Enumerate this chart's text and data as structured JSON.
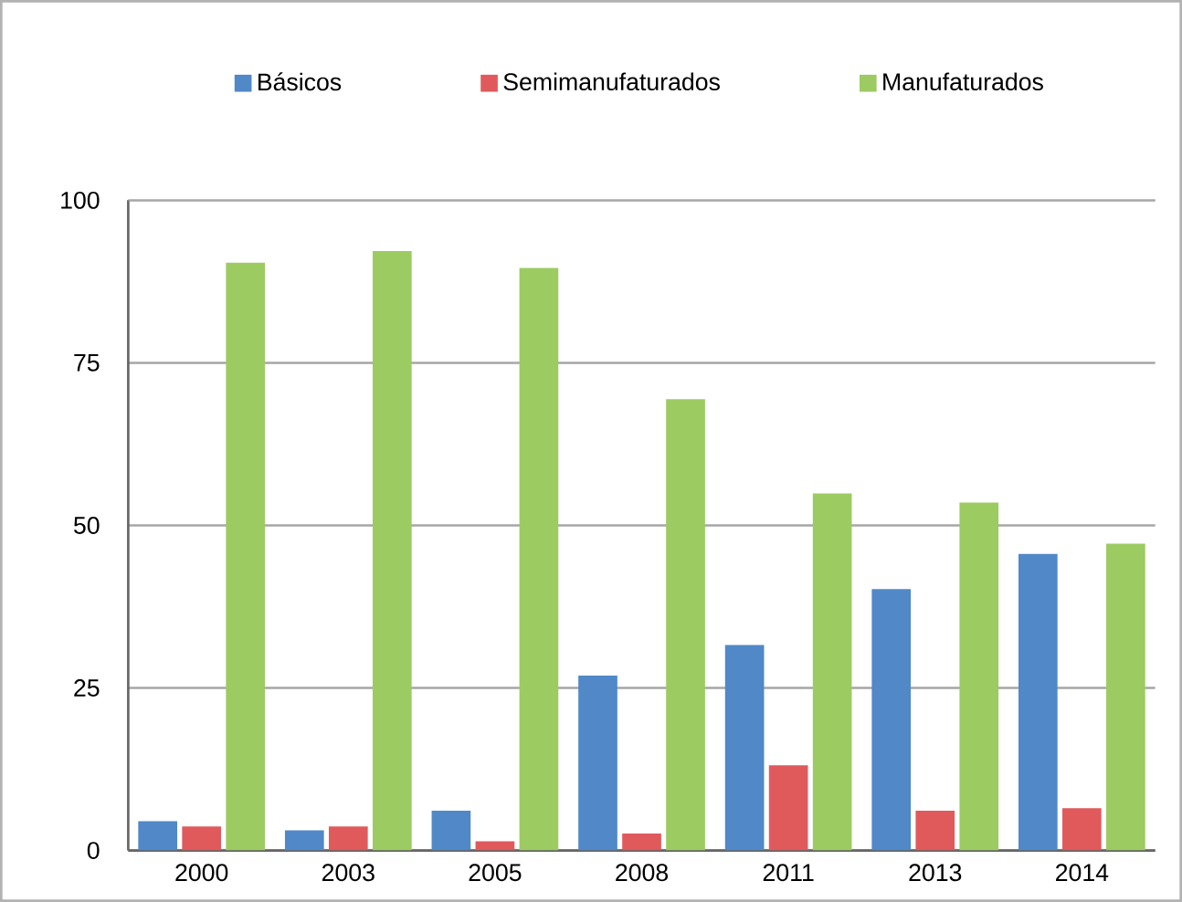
{
  "chart_data": {
    "type": "bar",
    "categories": [
      "2000",
      "2003",
      "2005",
      "2008",
      "2011",
      "2013",
      "2014"
    ],
    "series": [
      {
        "name": "Básicos",
        "color": "#5088c8",
        "values": [
          4.5,
          3.1,
          6.1,
          26.9,
          31.6,
          40.2,
          45.6
        ]
      },
      {
        "name": "Semimanufaturados",
        "color": "#e05a5c",
        "values": [
          3.7,
          3.7,
          1.4,
          2.6,
          13.1,
          6.1,
          6.5
        ]
      },
      {
        "name": "Manufaturados",
        "color": "#9ccb62",
        "values": [
          90.4,
          92.2,
          89.6,
          69.4,
          54.9,
          53.5,
          47.2
        ]
      }
    ],
    "ylim": [
      0,
      100
    ],
    "yticks": [
      0,
      25,
      50,
      75,
      100
    ],
    "grid": "y",
    "legend": "top"
  }
}
